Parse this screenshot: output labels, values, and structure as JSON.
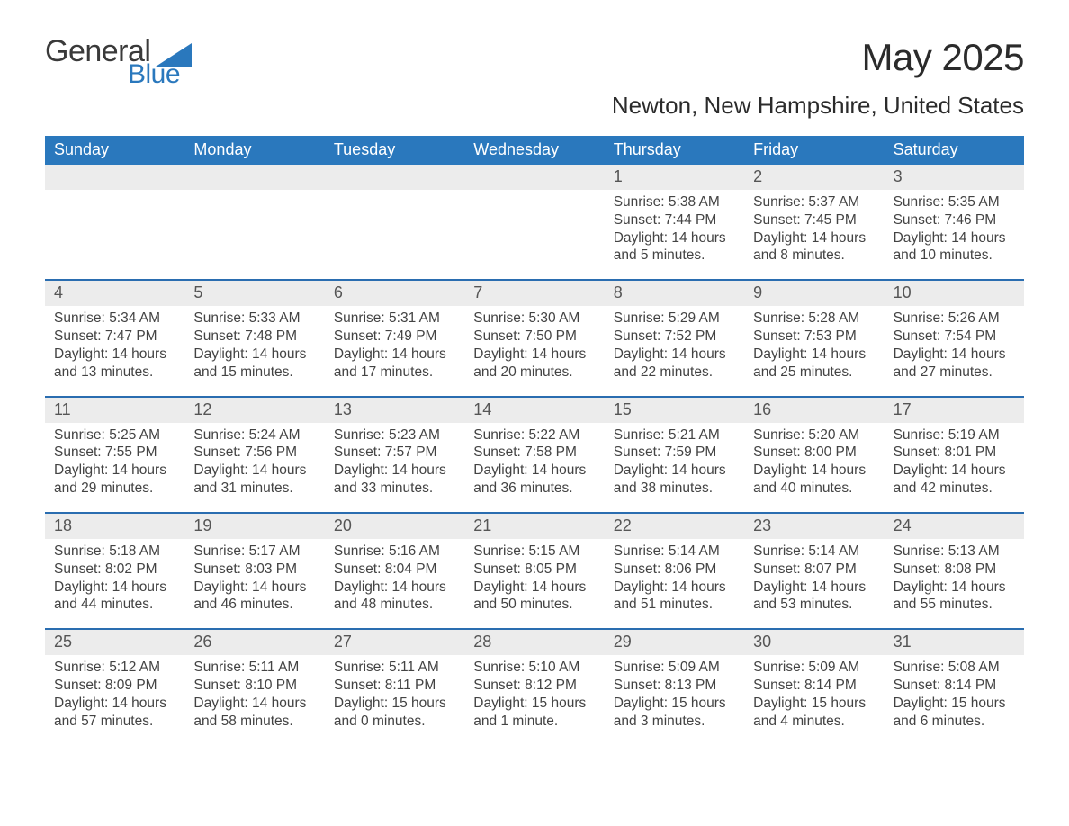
{
  "brand": {
    "word1": "General",
    "word2": "Blue",
    "triangle_color": "#2a78bd"
  },
  "title": "May 2025",
  "location": "Newton, New Hampshire, United States",
  "colors": {
    "header_blue": "#2a78bd",
    "stripe": "#ececec",
    "rule": "#2a6db0",
    "background": "#ffffff",
    "text": "#3a3a3a"
  },
  "typography": {
    "title_pt": 42,
    "location_pt": 26,
    "dow_pt": 18,
    "daynum_pt": 18,
    "body_pt": 15.5
  },
  "layout": {
    "columns": 7,
    "first_day_column": 4
  },
  "days_of_week": [
    "Sunday",
    "Monday",
    "Tuesday",
    "Wednesday",
    "Thursday",
    "Friday",
    "Saturday"
  ],
  "labels": {
    "sunrise": "Sunrise:",
    "sunset": "Sunset:",
    "daylight": "Daylight:"
  },
  "weeks": [
    [
      null,
      null,
      null,
      null,
      {
        "n": "1",
        "sunrise": "5:38 AM",
        "sunset": "7:44 PM",
        "daylight": "14 hours and 5 minutes."
      },
      {
        "n": "2",
        "sunrise": "5:37 AM",
        "sunset": "7:45 PM",
        "daylight": "14 hours and 8 minutes."
      },
      {
        "n": "3",
        "sunrise": "5:35 AM",
        "sunset": "7:46 PM",
        "daylight": "14 hours and 10 minutes."
      }
    ],
    [
      {
        "n": "4",
        "sunrise": "5:34 AM",
        "sunset": "7:47 PM",
        "daylight": "14 hours and 13 minutes."
      },
      {
        "n": "5",
        "sunrise": "5:33 AM",
        "sunset": "7:48 PM",
        "daylight": "14 hours and 15 minutes."
      },
      {
        "n": "6",
        "sunrise": "5:31 AM",
        "sunset": "7:49 PM",
        "daylight": "14 hours and 17 minutes."
      },
      {
        "n": "7",
        "sunrise": "5:30 AM",
        "sunset": "7:50 PM",
        "daylight": "14 hours and 20 minutes."
      },
      {
        "n": "8",
        "sunrise": "5:29 AM",
        "sunset": "7:52 PM",
        "daylight": "14 hours and 22 minutes."
      },
      {
        "n": "9",
        "sunrise": "5:28 AM",
        "sunset": "7:53 PM",
        "daylight": "14 hours and 25 minutes."
      },
      {
        "n": "10",
        "sunrise": "5:26 AM",
        "sunset": "7:54 PM",
        "daylight": "14 hours and 27 minutes."
      }
    ],
    [
      {
        "n": "11",
        "sunrise": "5:25 AM",
        "sunset": "7:55 PM",
        "daylight": "14 hours and 29 minutes."
      },
      {
        "n": "12",
        "sunrise": "5:24 AM",
        "sunset": "7:56 PM",
        "daylight": "14 hours and 31 minutes."
      },
      {
        "n": "13",
        "sunrise": "5:23 AM",
        "sunset": "7:57 PM",
        "daylight": "14 hours and 33 minutes."
      },
      {
        "n": "14",
        "sunrise": "5:22 AM",
        "sunset": "7:58 PM",
        "daylight": "14 hours and 36 minutes."
      },
      {
        "n": "15",
        "sunrise": "5:21 AM",
        "sunset": "7:59 PM",
        "daylight": "14 hours and 38 minutes."
      },
      {
        "n": "16",
        "sunrise": "5:20 AM",
        "sunset": "8:00 PM",
        "daylight": "14 hours and 40 minutes."
      },
      {
        "n": "17",
        "sunrise": "5:19 AM",
        "sunset": "8:01 PM",
        "daylight": "14 hours and 42 minutes."
      }
    ],
    [
      {
        "n": "18",
        "sunrise": "5:18 AM",
        "sunset": "8:02 PM",
        "daylight": "14 hours and 44 minutes."
      },
      {
        "n": "19",
        "sunrise": "5:17 AM",
        "sunset": "8:03 PM",
        "daylight": "14 hours and 46 minutes."
      },
      {
        "n": "20",
        "sunrise": "5:16 AM",
        "sunset": "8:04 PM",
        "daylight": "14 hours and 48 minutes."
      },
      {
        "n": "21",
        "sunrise": "5:15 AM",
        "sunset": "8:05 PM",
        "daylight": "14 hours and 50 minutes."
      },
      {
        "n": "22",
        "sunrise": "5:14 AM",
        "sunset": "8:06 PM",
        "daylight": "14 hours and 51 minutes."
      },
      {
        "n": "23",
        "sunrise": "5:14 AM",
        "sunset": "8:07 PM",
        "daylight": "14 hours and 53 minutes."
      },
      {
        "n": "24",
        "sunrise": "5:13 AM",
        "sunset": "8:08 PM",
        "daylight": "14 hours and 55 minutes."
      }
    ],
    [
      {
        "n": "25",
        "sunrise": "5:12 AM",
        "sunset": "8:09 PM",
        "daylight": "14 hours and 57 minutes."
      },
      {
        "n": "26",
        "sunrise": "5:11 AM",
        "sunset": "8:10 PM",
        "daylight": "14 hours and 58 minutes."
      },
      {
        "n": "27",
        "sunrise": "5:11 AM",
        "sunset": "8:11 PM",
        "daylight": "15 hours and 0 minutes."
      },
      {
        "n": "28",
        "sunrise": "5:10 AM",
        "sunset": "8:12 PM",
        "daylight": "15 hours and 1 minute."
      },
      {
        "n": "29",
        "sunrise": "5:09 AM",
        "sunset": "8:13 PM",
        "daylight": "15 hours and 3 minutes."
      },
      {
        "n": "30",
        "sunrise": "5:09 AM",
        "sunset": "8:14 PM",
        "daylight": "15 hours and 4 minutes."
      },
      {
        "n": "31",
        "sunrise": "5:08 AM",
        "sunset": "8:14 PM",
        "daylight": "15 hours and 6 minutes."
      }
    ]
  ]
}
